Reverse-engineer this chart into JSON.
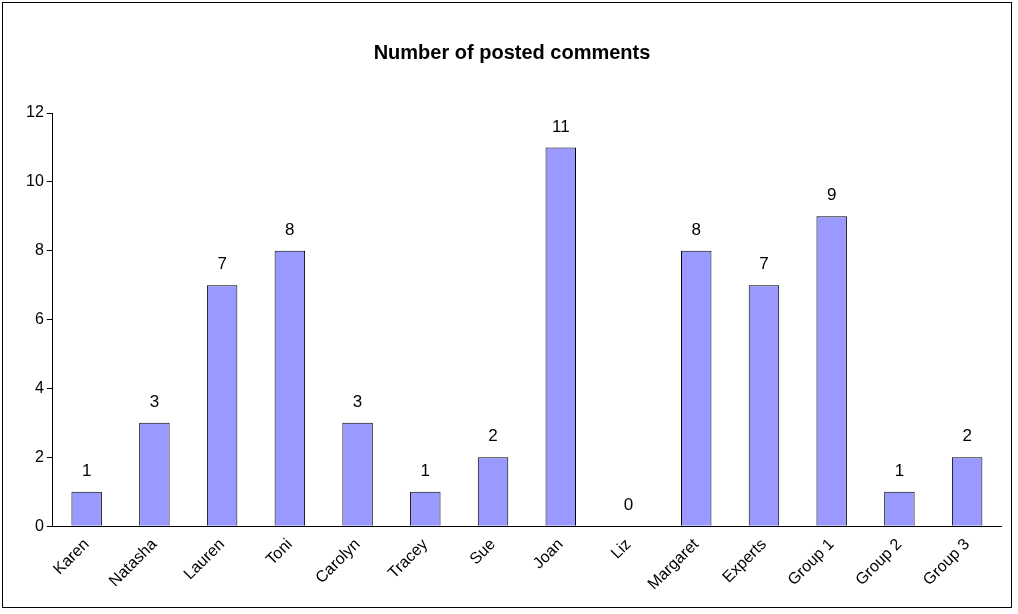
{
  "chart_data": {
    "type": "bar",
    "title": "Number of posted comments",
    "categories": [
      "Karen",
      "Natasha",
      "Lauren",
      "Toni",
      "Carolyn",
      "Tracey",
      "Sue",
      "Joan",
      "Liz",
      "Margaret",
      "Experts",
      "Group 1",
      "Group 2",
      "Group 3"
    ],
    "values": [
      1,
      3,
      7,
      8,
      3,
      1,
      2,
      11,
      0,
      8,
      7,
      9,
      1,
      2
    ],
    "color": "#9999ff",
    "ylim": [
      0,
      12
    ],
    "yticks": [
      0,
      2,
      4,
      6,
      8,
      10,
      12
    ],
    "grid": false,
    "legend": false,
    "data_labels": true
  }
}
